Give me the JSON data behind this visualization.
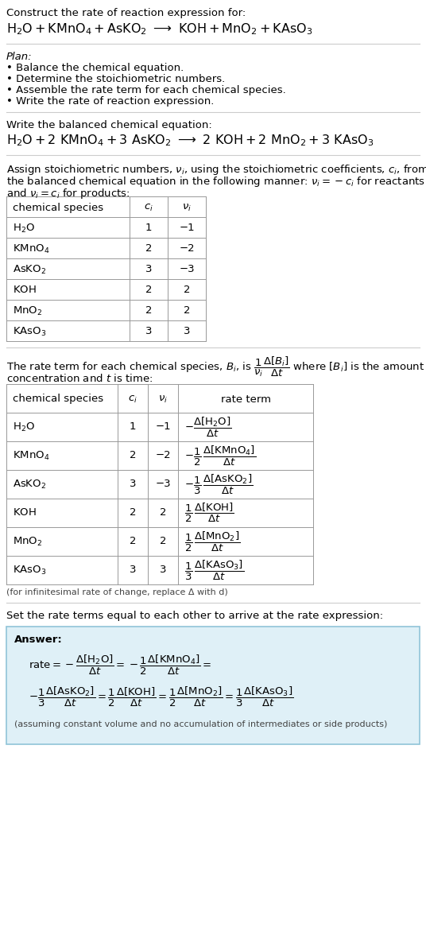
{
  "title_line1": "Construct the rate of reaction expression for:",
  "plan_header": "Plan:",
  "plan_items": [
    "• Balance the chemical equation.",
    "• Determine the stoichiometric numbers.",
    "• Assemble the rate term for each chemical species.",
    "• Write the rate of reaction expression."
  ],
  "balanced_header": "Write the balanced chemical equation:",
  "stoich_intro": "Assign stoichiometric numbers, ",
  "stoich_mid1": ", using the stoichiometric coefficients, ",
  "stoich_mid2": ", from the balanced chemical equation in the following manner: ",
  "stoich_mid3": " for reactants and ",
  "stoich_mid4": " for products:",
  "table1_headers": [
    "chemical species",
    "c_i",
    "v_i"
  ],
  "table1_species": [
    "H_2O",
    "KMnO_4",
    "AsKO_2",
    "KOH",
    "MnO_2",
    "KAsO_3"
  ],
  "table1_ci": [
    "1",
    "2",
    "3",
    "2",
    "2",
    "3"
  ],
  "table1_vi": [
    "-1",
    "-2",
    "-3",
    "2",
    "2",
    "3"
  ],
  "rate_intro1": "The rate term for each chemical species, ",
  "rate_intro3": ", is ",
  "rate_intro4": " where ",
  "rate_intro5": " is the amount concentration and ",
  "rate_intro6": " is time:",
  "table2_headers": [
    "chemical species",
    "c_i",
    "v_i",
    "rate term"
  ],
  "table2_species": [
    "H_2O",
    "KMnO_4",
    "AsKO_2",
    "KOH",
    "MnO_2",
    "KAsO_3"
  ],
  "table2_ci": [
    "1",
    "2",
    "3",
    "2",
    "2",
    "3"
  ],
  "table2_vi": [
    "-1",
    "-2",
    "-3",
    "2",
    "2",
    "3"
  ],
  "infinitesimal_note": "(for infinitesimal rate of change, replace Δ with d)",
  "set_equal_text": "Set the rate terms equal to each other to arrive at the rate expression:",
  "answer_label": "Answer:",
  "answer_box_color": "#dff0f7",
  "answer_box_border": "#90c4d8",
  "answer_note": "(assuming constant volume and no accumulation of intermediates or side products)",
  "bg_color": "#ffffff",
  "text_color": "#000000",
  "separator_color": "#cccccc",
  "table_border_color": "#999999"
}
